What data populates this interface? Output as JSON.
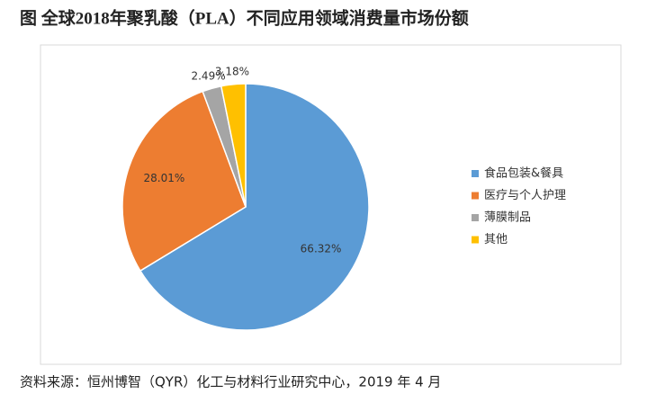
{
  "chart_data": {
    "type": "pie",
    "title": "图 全球2018年聚乳酸（PLA）不同应用领域消费量市场份额",
    "categories": [
      "食品包装&餐具",
      "医疗与个人护理",
      "薄膜制品",
      "其他"
    ],
    "values": [
      66.32,
      28.01,
      2.49,
      3.18
    ],
    "value_labels": [
      "66.32%",
      "28.01%",
      "2.49%",
      "3.18%"
    ],
    "colors": [
      "#5b9bd5",
      "#ed7d31",
      "#a5a5a5",
      "#ffc000"
    ],
    "legend": "right",
    "source": "资料来源：恒州博智（QYR）化工与材料行业研究中心，2019 年 4 月"
  }
}
